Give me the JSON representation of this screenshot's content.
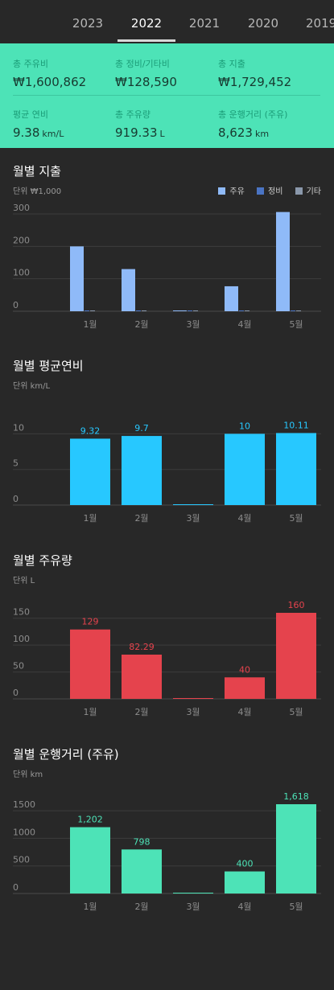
{
  "year_tabs": [
    "2023",
    "2022",
    "2021",
    "2020",
    "2019"
  ],
  "active_year": "2022",
  "summary": {
    "fuel_cost": {
      "label": "총 주유비",
      "value": "₩1,600,862"
    },
    "maint_cost": {
      "label": "총 정비/기타비",
      "value": "₩128,590"
    },
    "total_cost": {
      "label": "총 지출",
      "value": "₩1,729,452"
    },
    "avg_efficiency": {
      "label": "평균 연비",
      "value": "9.38",
      "unit": "km/L"
    },
    "total_fuel": {
      "label": "총 주유량",
      "value": "919.33",
      "unit": "L"
    },
    "total_distance": {
      "label": "총 운행거리 (주유)",
      "value": "8,623",
      "unit": "km"
    }
  },
  "colors": {
    "accent": "#4de3b7",
    "fuel_bar": "#8fbaf8",
    "maint_bar": "#4a74c4",
    "other_bar": "#8a98ab",
    "efficiency_bar": "#27c8ff",
    "fuel_volume_bar": "#e5434d",
    "distance_bar": "#4de3b7"
  },
  "sections": {
    "spending": {
      "title": "월별 지출",
      "unit": "단위 ₩1,000"
    },
    "efficiency": {
      "title": "월별 평균연비",
      "unit": "단위 km/L"
    },
    "fuel": {
      "title": "월별 주유량",
      "unit": "단위 L"
    },
    "distance": {
      "title": "월별 운행거리 (주유)",
      "unit": "단위 km"
    }
  },
  "chart_data": [
    {
      "type": "bar",
      "title": "월별 지출",
      "ylabel": "단위 ₩1,000",
      "categories": [
        "1월",
        "2월",
        "3월",
        "4월",
        "5월"
      ],
      "series": [
        {
          "name": "주유",
          "color": "#8fbaf8",
          "values": [
            200,
            130,
            0,
            77,
            306
          ]
        },
        {
          "name": "정비",
          "color": "#4a74c4",
          "values": [
            0,
            0,
            0,
            0,
            0
          ]
        },
        {
          "name": "기타",
          "color": "#8a98ab",
          "values": [
            0,
            0,
            0,
            0,
            0
          ]
        }
      ],
      "yticks": [
        0,
        100,
        200,
        300
      ],
      "ylim": [
        0,
        310
      ],
      "legend": "top-right",
      "grid": true
    },
    {
      "type": "bar",
      "title": "월별 평균연비",
      "ylabel": "단위 km/L",
      "categories": [
        "1월",
        "2월",
        "3월",
        "4월",
        "5월"
      ],
      "values": [
        9.32,
        9.7,
        0,
        10,
        10.11
      ],
      "data_labels": [
        "9.32",
        "9.7",
        "",
        "10",
        "10.11"
      ],
      "color": "#27c8ff",
      "yticks": [
        0,
        5,
        10
      ],
      "ylim": [
        0,
        10.5
      ],
      "grid": true
    },
    {
      "type": "bar",
      "title": "월별 주유량",
      "ylabel": "단위 L",
      "categories": [
        "1월",
        "2월",
        "3월",
        "4월",
        "5월"
      ],
      "values": [
        129,
        82.29,
        0,
        40,
        160
      ],
      "data_labels": [
        "129",
        "82.29",
        "",
        "40",
        "160"
      ],
      "color": "#e5434d",
      "yticks": [
        0,
        50,
        100,
        150
      ],
      "ylim": [
        0,
        160
      ],
      "grid": true
    },
    {
      "type": "bar",
      "title": "월별 운행거리 (주유)",
      "ylabel": "단위 km",
      "categories": [
        "1월",
        "2월",
        "3월",
        "4월",
        "5월"
      ],
      "values": [
        1202,
        798,
        0,
        400,
        1618
      ],
      "data_labels": [
        "1,202",
        "798",
        "",
        "400",
        "1,618"
      ],
      "color": "#4de3b7",
      "yticks": [
        0,
        500,
        1000,
        1500
      ],
      "ylim": [
        0,
        1618
      ],
      "grid": true
    }
  ]
}
